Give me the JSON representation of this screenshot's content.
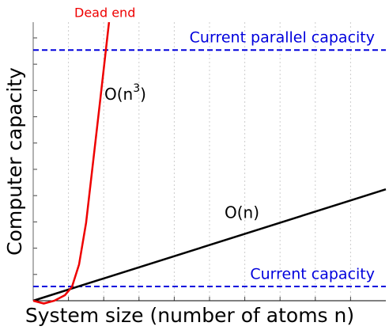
{
  "chart_data": {
    "type": "line",
    "xlabel": "System size (number of atoms n)",
    "ylabel": "Computer capacity",
    "xlim": [
      0,
      10
    ],
    "ylim": [
      0,
      10
    ],
    "series": [
      {
        "name": "O(n)",
        "color": "#000000",
        "x": [
          0,
          10
        ],
        "values": [
          0,
          4
        ]
      },
      {
        "name": "O(n^3)",
        "color": "#ee0000",
        "x": [
          0,
          0.3,
          0.6,
          0.9,
          1.1,
          1.3,
          1.5,
          1.7,
          1.9,
          2.15
        ],
        "values": [
          0,
          -0.1,
          0,
          0.2,
          0.5,
          1.3,
          2.8,
          5.0,
          7.2,
          10
        ]
      }
    ],
    "series_labels": [
      {
        "text": "O(n)"
      },
      {
        "text": "O(n",
        "sup": "3",
        "tail": ")"
      }
    ],
    "reference_lines": [
      {
        "label": "Current parallel capacity",
        "value": 9.0,
        "color": "#0000dd"
      },
      {
        "label": "Current capacity",
        "value": 0.51,
        "color": "#0000dd"
      }
    ],
    "annotation": {
      "text": "Dead end",
      "color": "#ee0000"
    }
  }
}
